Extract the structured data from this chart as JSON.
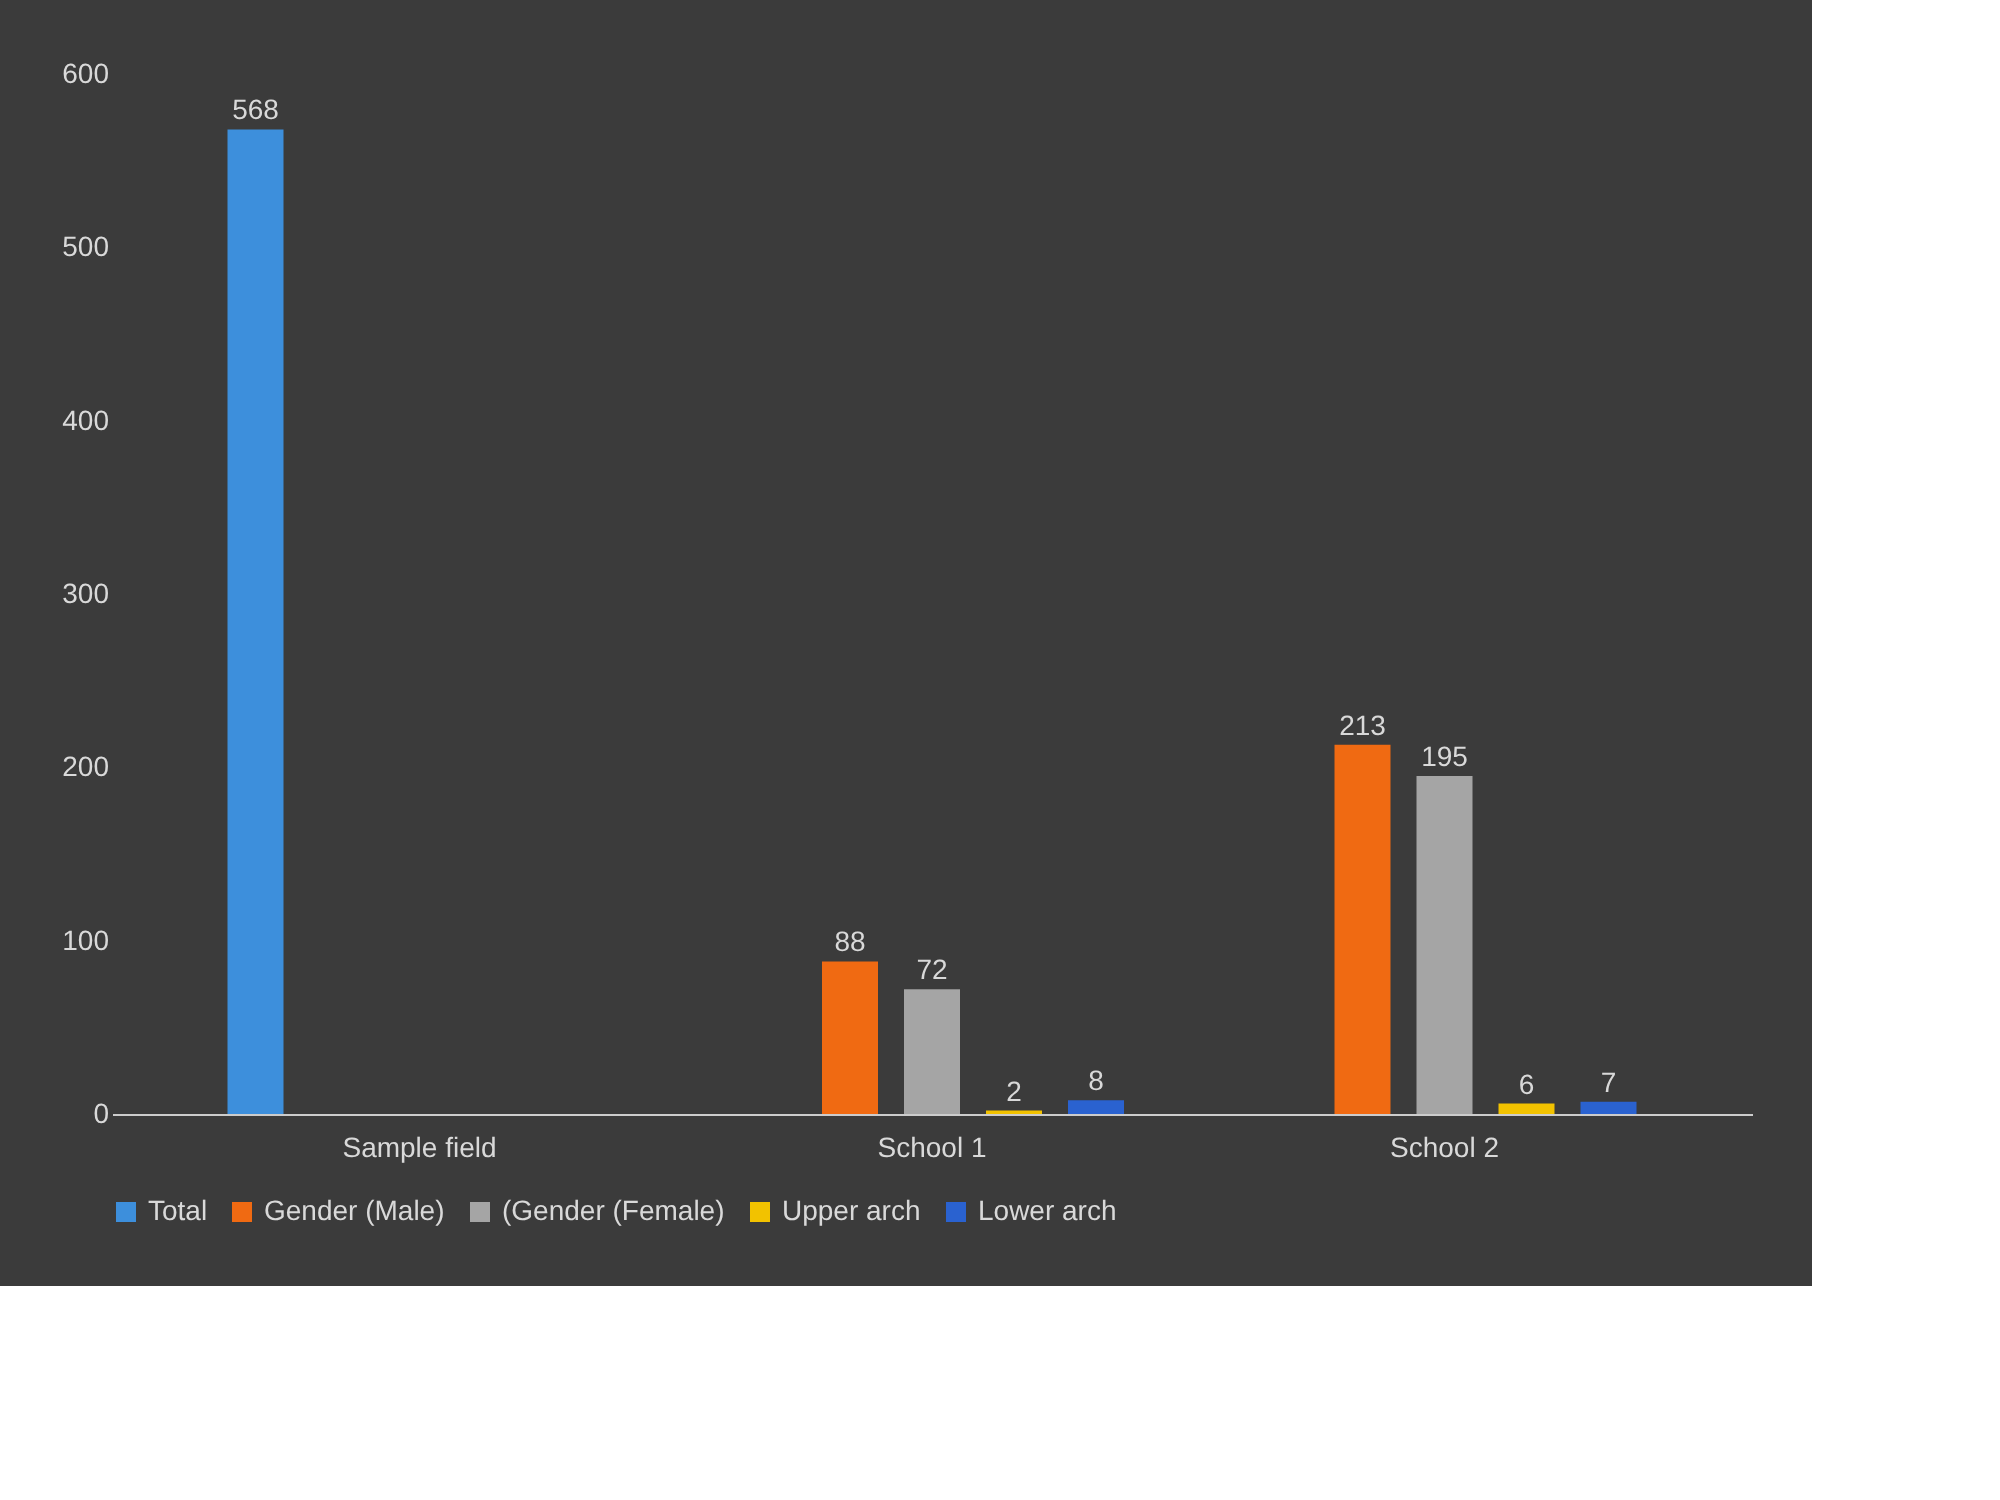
{
  "chart_data": {
    "type": "bar",
    "categories": [
      "Sample field",
      "School 1",
      "School 2"
    ],
    "series": [
      {
        "name": "Total",
        "color": "#3d8fdc",
        "values": [
          568,
          null,
          null
        ]
      },
      {
        "name": "Gender (Male)",
        "color": "#f06a12",
        "values": [
          null,
          88,
          213
        ]
      },
      {
        "name": "(Gender (Female)",
        "color": "#a5a5a5",
        "values": [
          null,
          72,
          195
        ]
      },
      {
        "name": "Upper arch",
        "color": "#f2c200",
        "values": [
          null,
          2,
          6
        ]
      },
      {
        "name": "Lower arch",
        "color": "#2a62d0",
        "values": [
          null,
          8,
          7
        ]
      }
    ],
    "ylim": [
      0,
      600
    ],
    "yticks": [
      0,
      100,
      200,
      300,
      400,
      500,
      600
    ],
    "grid": false,
    "legend": "bottom",
    "data_labels": true
  }
}
